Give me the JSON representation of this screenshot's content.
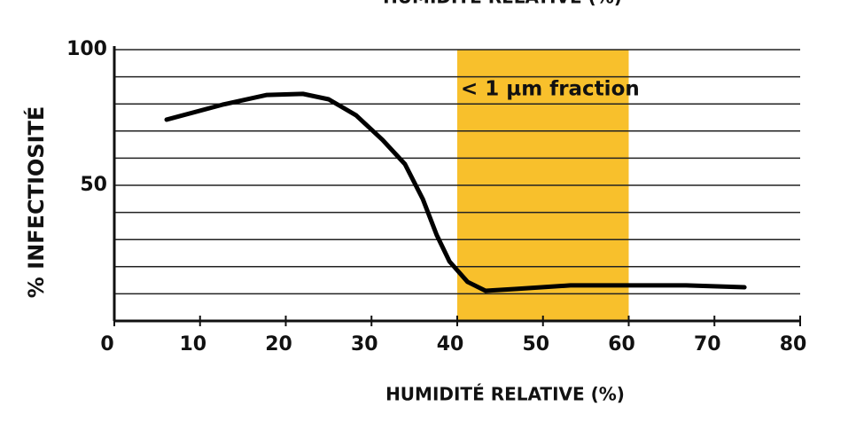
{
  "chart_data": {
    "type": "line",
    "title": "HUMIDITÉ RELATIVE (%)",
    "x_label": "HUMIDITÉ RELATIVE (%)",
    "y_label": "% INFECTIOSITÉ",
    "annotation": "< 1 µm fraction",
    "band": [
      40,
      60
    ],
    "band_color": "#f8c02c",
    "xlim": [
      0,
      80
    ],
    "ylim": [
      0,
      100
    ],
    "xticks": [
      0,
      10,
      20,
      30,
      40,
      50,
      60,
      70,
      80
    ],
    "yticks": [
      50,
      100
    ],
    "grid_lines": [
      10,
      20,
      30,
      40,
      50,
      60,
      70,
      80,
      90,
      100
    ],
    "series": [
      {
        "color": "#000000",
        "x": [
          6.1,
          12.6,
          17.8,
          22,
          25,
          28.2,
          31.3,
          33.9,
          36,
          37.6,
          39.1,
          41.2,
          43.3,
          46.9,
          53.2,
          59.4,
          66.7,
          73.5
        ],
        "values": [
          74.2,
          79.7,
          83.3,
          83.7,
          81.7,
          75.8,
          66.7,
          57.8,
          44.8,
          31.7,
          21.9,
          14.4,
          11.1,
          11.8,
          13.1,
          13.1,
          13.1,
          12.4
        ]
      }
    ]
  }
}
